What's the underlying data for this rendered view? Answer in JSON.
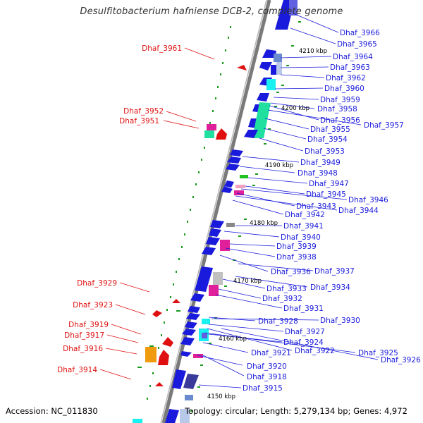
{
  "title": "Desulfitobacterium hafniense DCB-2, complete genome",
  "footer": {
    "accession": "Accession: NC_011830",
    "summary": "Topology: circular; Length: 5,279,134 bp; Genes: 4,972"
  },
  "colors": {
    "blue": "#1a1adc",
    "red": "#e01010",
    "cyan": "#19f0f0",
    "teal": "#20e0a0",
    "magenta": "#e0209a",
    "orange": "#f09a10",
    "navy": "#3a3a9a",
    "steel": "#6a8ad0",
    "green": "#1a9a1a",
    "backbone": "#7a7a7a"
  },
  "ticks": [
    {
      "label": "4210 kbp"
    },
    {
      "label": "4200 kbp"
    },
    {
      "label": "4190 kbp"
    },
    {
      "label": "4180 kbp"
    },
    {
      "label": "4170 kbp"
    },
    {
      "label": "4160 kbp"
    },
    {
      "label": "4150 kbp"
    }
  ],
  "right_labels": [
    "Dhaf_3966",
    "Dhaf_3965",
    "Dhaf_3964",
    "Dhaf_3963",
    "Dhaf_3962",
    "Dhaf_3960",
    "Dhaf_3959",
    "Dhaf_3958",
    "Dhaf_3956",
    "Dhaf_3957",
    "Dhaf_3955",
    "Dhaf_3954",
    "Dhaf_3953",
    "Dhaf_3949",
    "Dhaf_3948",
    "Dhaf_3947",
    "Dhaf_3945",
    "Dhaf_3946",
    "Dhaf_3943",
    "Dhaf_3944",
    "Dhaf_3942",
    "Dhaf_3941",
    "Dhaf_3940",
    "Dhaf_3939",
    "Dhaf_3938",
    "Dhaf_3936",
    "Dhaf_3937",
    "Dhaf_3933",
    "Dhaf_3934",
    "Dhaf_3932",
    "Dhaf_3931",
    "Dhaf_3928",
    "Dhaf_3930",
    "Dhaf_3927",
    "Dhaf_3924",
    "Dhaf_3922",
    "Dhaf_3925",
    "Dhaf_3926",
    "Dhaf_3921",
    "Dhaf_3920",
    "Dhaf_3918",
    "Dhaf_3915"
  ],
  "left_labels": [
    "Dhaf_3961",
    "Dhaf_3952",
    "Dhaf_3951",
    "Dhaf_3929",
    "Dhaf_3923",
    "Dhaf_3919",
    "Dhaf_3917",
    "Dhaf_3916",
    "Dhaf_3914"
  ]
}
